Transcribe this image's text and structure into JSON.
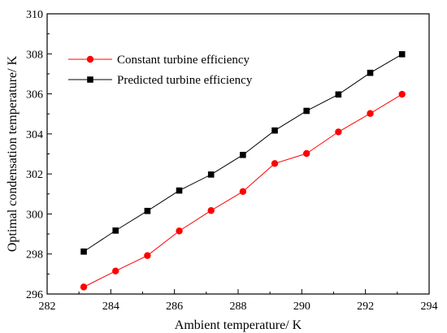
{
  "chart_data": {
    "type": "line",
    "title": "",
    "xlabel": "Ambient temperature/ K",
    "ylabel": "Optimal condensation temperature/ K",
    "xlim": [
      282,
      294
    ],
    "ylim": [
      296,
      310
    ],
    "xticks": [
      282,
      284,
      286,
      288,
      290,
      292,
      294
    ],
    "yticks": [
      296,
      298,
      300,
      302,
      304,
      306,
      308,
      310
    ],
    "grid": false,
    "legend_position": "top-left",
    "x": [
      283.15,
      284.15,
      285.15,
      286.15,
      287.15,
      288.15,
      289.15,
      290.15,
      291.15,
      292.15,
      293.15
    ],
    "series": [
      {
        "name": "Constant turbine efficiency",
        "marker": "circle",
        "marker_color": "#ff0000",
        "line_color": "#ff0000",
        "values": [
          296.35,
          297.15,
          297.92,
          299.15,
          300.17,
          301.12,
          302.52,
          303.02,
          304.1,
          305.02,
          305.98
        ]
      },
      {
        "name": "Predicted turbine efficiency",
        "marker": "square",
        "marker_color": "#000000",
        "line_color": "#000000",
        "values": [
          298.12,
          299.17,
          300.15,
          301.17,
          301.97,
          302.95,
          304.17,
          305.15,
          305.97,
          307.05,
          307.98
        ]
      }
    ]
  }
}
